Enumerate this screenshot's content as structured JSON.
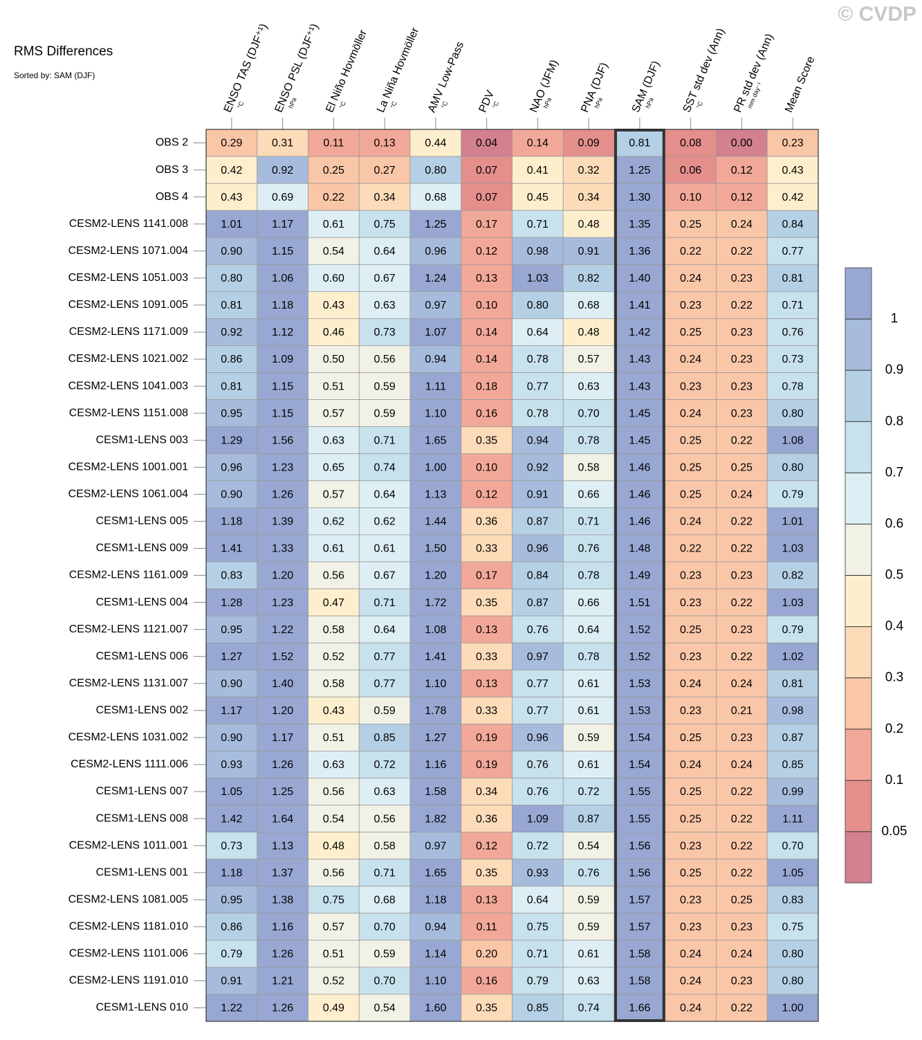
{
  "chart_data": {
    "type": "heatmap",
    "title": "RMS Differences",
    "subtitle": "Sorted by: SAM (DJF)",
    "watermark": "© CVDP",
    "highlight": "SAM (DJF)",
    "columns": [
      {
        "name": "ENSO TAS (DJF⁺¹)",
        "unit": "°C"
      },
      {
        "name": "ENSO PSL (DJF⁺¹)",
        "unit": "hPa"
      },
      {
        "name": "El Niño Hovmöller",
        "unit": "°C"
      },
      {
        "name": "La Niña Hovmöller",
        "unit": "°C"
      },
      {
        "name": "AMV Low-Pass",
        "unit": "°C"
      },
      {
        "name": "PDV",
        "unit": "°C"
      },
      {
        "name": "NAO (JFM)",
        "unit": "hPa"
      },
      {
        "name": "PNA (DJF)",
        "unit": "hPa"
      },
      {
        "name": "SAM (DJF)",
        "unit": "hPa"
      },
      {
        "name": "SST std dev (Ann)",
        "unit": "°C"
      },
      {
        "name": "PR std dev (Ann)",
        "unit": "mm day⁻¹"
      },
      {
        "name": "Mean Score"
      }
    ],
    "categories": [
      "OBS 2",
      "OBS 3",
      "OBS 4",
      "CESM2-LENS 1141.008",
      "CESM2-LENS 1071.004",
      "CESM2-LENS 1051.003",
      "CESM2-LENS 1091.005",
      "CESM2-LENS 1171.009",
      "CESM2-LENS 1021.002",
      "CESM2-LENS 1041.003",
      "CESM2-LENS 1151.008",
      "CESM1-LENS 003",
      "CESM2-LENS 1001.001",
      "CESM2-LENS 1061.004",
      "CESM1-LENS 005",
      "CESM1-LENS 009",
      "CESM2-LENS 1161.009",
      "CESM1-LENS 004",
      "CESM2-LENS 1121.007",
      "CESM1-LENS 006",
      "CESM2-LENS 1131.007",
      "CESM1-LENS 002",
      "CESM2-LENS 1031.002",
      "CESM2-LENS 1111.006",
      "CESM1-LENS 007",
      "CESM1-LENS 008",
      "CESM2-LENS 1011.001",
      "CESM1-LENS 001",
      "CESM2-LENS 1081.005",
      "CESM2-LENS 1181.010",
      "CESM2-LENS 1101.006",
      "CESM2-LENS 1191.010",
      "CESM1-LENS 010"
    ],
    "values": [
      [
        0.29,
        0.31,
        0.11,
        0.13,
        0.44,
        0.04,
        0.14,
        0.09,
        0.81,
        0.08,
        0.0,
        0.23
      ],
      [
        0.42,
        0.92,
        0.25,
        0.27,
        0.8,
        0.07,
        0.41,
        0.32,
        1.25,
        0.06,
        0.12,
        0.43
      ],
      [
        0.43,
        0.69,
        0.22,
        0.34,
        0.68,
        0.07,
        0.45,
        0.34,
        1.3,
        0.1,
        0.12,
        0.42
      ],
      [
        1.01,
        1.17,
        0.61,
        0.75,
        1.25,
        0.17,
        0.71,
        0.48,
        1.35,
        0.25,
        0.24,
        0.84
      ],
      [
        0.9,
        1.15,
        0.54,
        0.64,
        0.96,
        0.12,
        0.98,
        0.91,
        1.36,
        0.22,
        0.22,
        0.77
      ],
      [
        0.8,
        1.06,
        0.6,
        0.67,
        1.24,
        0.13,
        1.03,
        0.82,
        1.4,
        0.24,
        0.23,
        0.81
      ],
      [
        0.81,
        1.18,
        0.43,
        0.63,
        0.97,
        0.1,
        0.8,
        0.68,
        1.41,
        0.23,
        0.22,
        0.71
      ],
      [
        0.92,
        1.12,
        0.46,
        0.73,
        1.07,
        0.14,
        0.64,
        0.48,
        1.42,
        0.25,
        0.23,
        0.76
      ],
      [
        0.86,
        1.09,
        0.5,
        0.56,
        0.94,
        0.14,
        0.78,
        0.57,
        1.43,
        0.24,
        0.23,
        0.73
      ],
      [
        0.81,
        1.15,
        0.51,
        0.59,
        1.11,
        0.18,
        0.77,
        0.63,
        1.43,
        0.23,
        0.23,
        0.78
      ],
      [
        0.95,
        1.15,
        0.57,
        0.59,
        1.1,
        0.16,
        0.78,
        0.7,
        1.45,
        0.24,
        0.23,
        0.8
      ],
      [
        1.29,
        1.56,
        0.63,
        0.71,
        1.65,
        0.35,
        0.94,
        0.78,
        1.45,
        0.25,
        0.22,
        1.08
      ],
      [
        0.96,
        1.23,
        0.65,
        0.74,
        1.0,
        0.1,
        0.92,
        0.58,
        1.46,
        0.25,
        0.25,
        0.8
      ],
      [
        0.9,
        1.26,
        0.57,
        0.64,
        1.13,
        0.12,
        0.91,
        0.66,
        1.46,
        0.25,
        0.24,
        0.79
      ],
      [
        1.18,
        1.39,
        0.62,
        0.62,
        1.44,
        0.36,
        0.87,
        0.71,
        1.46,
        0.24,
        0.22,
        1.01
      ],
      [
        1.41,
        1.33,
        0.61,
        0.61,
        1.5,
        0.33,
        0.96,
        0.76,
        1.48,
        0.22,
        0.22,
        1.03
      ],
      [
        0.83,
        1.2,
        0.56,
        0.67,
        1.2,
        0.17,
        0.84,
        0.78,
        1.49,
        0.23,
        0.23,
        0.82
      ],
      [
        1.28,
        1.23,
        0.47,
        0.71,
        1.72,
        0.35,
        0.87,
        0.66,
        1.51,
        0.23,
        0.22,
        1.03
      ],
      [
        0.95,
        1.22,
        0.58,
        0.64,
        1.08,
        0.13,
        0.76,
        0.64,
        1.52,
        0.25,
        0.23,
        0.79
      ],
      [
        1.27,
        1.52,
        0.52,
        0.77,
        1.41,
        0.33,
        0.97,
        0.78,
        1.52,
        0.23,
        0.22,
        1.02
      ],
      [
        0.9,
        1.4,
        0.58,
        0.77,
        1.1,
        0.13,
        0.77,
        0.61,
        1.53,
        0.24,
        0.24,
        0.81
      ],
      [
        1.17,
        1.2,
        0.43,
        0.59,
        1.78,
        0.33,
        0.77,
        0.61,
        1.53,
        0.23,
        0.21,
        0.98
      ],
      [
        0.9,
        1.17,
        0.51,
        0.85,
        1.27,
        0.19,
        0.96,
        0.59,
        1.54,
        0.25,
        0.23,
        0.87
      ],
      [
        0.93,
        1.26,
        0.63,
        0.72,
        1.16,
        0.19,
        0.76,
        0.61,
        1.54,
        0.24,
        0.24,
        0.85
      ],
      [
        1.05,
        1.25,
        0.56,
        0.63,
        1.58,
        0.34,
        0.76,
        0.72,
        1.55,
        0.25,
        0.22,
        0.99
      ],
      [
        1.42,
        1.64,
        0.54,
        0.56,
        1.82,
        0.36,
        1.09,
        0.87,
        1.55,
        0.25,
        0.22,
        1.11
      ],
      [
        0.73,
        1.13,
        0.48,
        0.58,
        0.97,
        0.12,
        0.72,
        0.54,
        1.56,
        0.23,
        0.22,
        0.7
      ],
      [
        1.18,
        1.37,
        0.56,
        0.71,
        1.65,
        0.35,
        0.93,
        0.76,
        1.56,
        0.25,
        0.22,
        1.05
      ],
      [
        0.95,
        1.38,
        0.75,
        0.68,
        1.18,
        0.13,
        0.64,
        0.59,
        1.57,
        0.23,
        0.25,
        0.83
      ],
      [
        0.86,
        1.16,
        0.57,
        0.7,
        0.94,
        0.11,
        0.75,
        0.59,
        1.57,
        0.23,
        0.23,
        0.75
      ],
      [
        0.79,
        1.26,
        0.51,
        0.59,
        1.14,
        0.2,
        0.71,
        0.61,
        1.58,
        0.24,
        0.24,
        0.8
      ],
      [
        0.91,
        1.21,
        0.52,
        0.7,
        1.1,
        0.16,
        0.79,
        0.63,
        1.58,
        0.24,
        0.23,
        0.8
      ],
      [
        1.22,
        1.26,
        0.49,
        0.54,
        1.6,
        0.35,
        0.85,
        0.74,
        1.66,
        0.24,
        0.22,
        1.0
      ]
    ],
    "value_labels": [
      [
        "0.29",
        "0.31",
        "0.11",
        "0.13",
        "0.44",
        "0.04",
        "0.14",
        "0.09",
        "0.81",
        "0.08",
        "0.00",
        "0.23"
      ],
      [
        "0.42",
        "0.92",
        "0.25",
        "0.27",
        "0.80",
        "0.07",
        "0.41",
        "0.32",
        "1.25",
        "0.06",
        "0.12",
        "0.43"
      ],
      [
        "0.43",
        "0.69",
        "0.22",
        "0.34",
        "0.68",
        "0.07",
        "0.45",
        "0.34",
        "1.30",
        "0.10",
        "0.12",
        "0.42"
      ],
      [
        "1.01",
        "1.17",
        "0.61",
        "0.75",
        "1.25",
        "0.17",
        "0.71",
        "0.48",
        "1.35",
        "0.25",
        "0.24",
        "0.84"
      ],
      [
        "0.90",
        "1.15",
        "0.54",
        "0.64",
        "0.96",
        "0.12",
        "0.98",
        "0.91",
        "1.36",
        "0.22",
        "0.22",
        "0.77"
      ],
      [
        "0.80",
        "1.06",
        "0.60",
        "0.67",
        "1.24",
        "0.13",
        "1.03",
        "0.82",
        "1.40",
        "0.24",
        "0.23",
        "0.81"
      ],
      [
        "0.81",
        "1.18",
        "0.43",
        "0.63",
        "0.97",
        "0.10",
        "0.80",
        "0.68",
        "1.41",
        "0.23",
        "0.22",
        "0.71"
      ],
      [
        "0.92",
        "1.12",
        "0.46",
        "0.73",
        "1.07",
        "0.14",
        "0.64",
        "0.48",
        "1.42",
        "0.25",
        "0.23",
        "0.76"
      ],
      [
        "0.86",
        "1.09",
        "0.50",
        "0.56",
        "0.94",
        "0.14",
        "0.78",
        "0.57",
        "1.43",
        "0.24",
        "0.23",
        "0.73"
      ],
      [
        "0.81",
        "1.15",
        "0.51",
        "0.59",
        "1.11",
        "0.18",
        "0.77",
        "0.63",
        "1.43",
        "0.23",
        "0.23",
        "0.78"
      ],
      [
        "0.95",
        "1.15",
        "0.57",
        "0.59",
        "1.10",
        "0.16",
        "0.78",
        "0.70",
        "1.45",
        "0.24",
        "0.23",
        "0.80"
      ],
      [
        "1.29",
        "1.56",
        "0.63",
        "0.71",
        "1.65",
        "0.35",
        "0.94",
        "0.78",
        "1.45",
        "0.25",
        "0.22",
        "1.08"
      ],
      [
        "0.96",
        "1.23",
        "0.65",
        "0.74",
        "1.00",
        "0.10",
        "0.92",
        "0.58",
        "1.46",
        "0.25",
        "0.25",
        "0.80"
      ],
      [
        "0.90",
        "1.26",
        "0.57",
        "0.64",
        "1.13",
        "0.12",
        "0.91",
        "0.66",
        "1.46",
        "0.25",
        "0.24",
        "0.79"
      ],
      [
        "1.18",
        "1.39",
        "0.62",
        "0.62",
        "1.44",
        "0.36",
        "0.87",
        "0.71",
        "1.46",
        "0.24",
        "0.22",
        "1.01"
      ],
      [
        "1.41",
        "1.33",
        "0.61",
        "0.61",
        "1.50",
        "0.33",
        "0.96",
        "0.76",
        "1.48",
        "0.22",
        "0.22",
        "1.03"
      ],
      [
        "0.83",
        "1.20",
        "0.56",
        "0.67",
        "1.20",
        "0.17",
        "0.84",
        "0.78",
        "1.49",
        "0.23",
        "0.23",
        "0.82"
      ],
      [
        "1.28",
        "1.23",
        "0.47",
        "0.71",
        "1.72",
        "0.35",
        "0.87",
        "0.66",
        "1.51",
        "0.23",
        "0.22",
        "1.03"
      ],
      [
        "0.95",
        "1.22",
        "0.58",
        "0.64",
        "1.08",
        "0.13",
        "0.76",
        "0.64",
        "1.52",
        "0.25",
        "0.23",
        "0.79"
      ],
      [
        "1.27",
        "1.52",
        "0.52",
        "0.77",
        "1.41",
        "0.33",
        "0.97",
        "0.78",
        "1.52",
        "0.23",
        "0.22",
        "1.02"
      ],
      [
        "0.90",
        "1.40",
        "0.58",
        "0.77",
        "1.10",
        "0.13",
        "0.77",
        "0.61",
        "1.53",
        "0.24",
        "0.24",
        "0.81"
      ],
      [
        "1.17",
        "1.20",
        "0.43",
        "0.59",
        "1.78",
        "0.33",
        "0.77",
        "0.61",
        "1.53",
        "0.23",
        "0.21",
        "0.98"
      ],
      [
        "0.90",
        "1.17",
        "0.51",
        "0.85",
        "1.27",
        "0.19",
        "0.96",
        "0.59",
        "1.54",
        "0.25",
        "0.23",
        "0.87"
      ],
      [
        "0.93",
        "1.26",
        "0.63",
        "0.72",
        "1.16",
        "0.19",
        "0.76",
        "0.61",
        "1.54",
        "0.24",
        "0.24",
        "0.85"
      ],
      [
        "1.05",
        "1.25",
        "0.56",
        "0.63",
        "1.58",
        "0.34",
        "0.76",
        "0.72",
        "1.55",
        "0.25",
        "0.22",
        "0.99"
      ],
      [
        "1.42",
        "1.64",
        "0.54",
        "0.56",
        "1.82",
        "0.36",
        "1.09",
        "0.87",
        "1.55",
        "0.25",
        "0.22",
        "1.11"
      ],
      [
        "0.73",
        "1.13",
        "0.48",
        "0.58",
        "0.97",
        "0.12",
        "0.72",
        "0.54",
        "1.56",
        "0.23",
        "0.22",
        "0.70"
      ],
      [
        "1.18",
        "1.37",
        "0.56",
        "0.71",
        "1.65",
        "0.35",
        "0.93",
        "0.76",
        "1.56",
        "0.25",
        "0.22",
        "1.05"
      ],
      [
        "0.95",
        "1.38",
        "0.75",
        "0.68",
        "1.18",
        "0.13",
        "0.64",
        "0.59",
        "1.57",
        "0.23",
        "0.25",
        "0.83"
      ],
      [
        "0.86",
        "1.16",
        "0.57",
        "0.70",
        "0.94",
        "0.11",
        "0.75",
        "0.59",
        "1.57",
        "0.23",
        "0.23",
        "0.75"
      ],
      [
        "0.79",
        "1.26",
        "0.51",
        "0.59",
        "1.14",
        "0.20",
        "0.71",
        "0.61",
        "1.58",
        "0.24",
        "0.24",
        "0.80"
      ],
      [
        "0.91",
        "1.21",
        "0.52",
        "0.70",
        "1.10",
        "0.16",
        "0.79",
        "0.63",
        "1.58",
        "0.24",
        "0.23",
        "0.80"
      ],
      [
        "1.22",
        "1.26",
        "0.49",
        "0.54",
        "1.60",
        "0.35",
        "0.85",
        "0.74",
        "1.66",
        "0.24",
        "0.22",
        "1.00"
      ]
    ],
    "colorbar": {
      "levels": [
        0.05,
        0.1,
        0.2,
        0.3,
        0.4,
        0.5,
        0.6,
        0.7,
        0.8,
        0.9,
        1
      ],
      "colors": [
        "#d3808f",
        "#e48f8c",
        "#f2a898",
        "#fac6a8",
        "#fcdbb9",
        "#fdefcd",
        "#f2f1e6",
        "#ddeef4",
        "#c7e1ed",
        "#b5d0e5",
        "#a7bcdc",
        "#98a8d2"
      ]
    }
  }
}
